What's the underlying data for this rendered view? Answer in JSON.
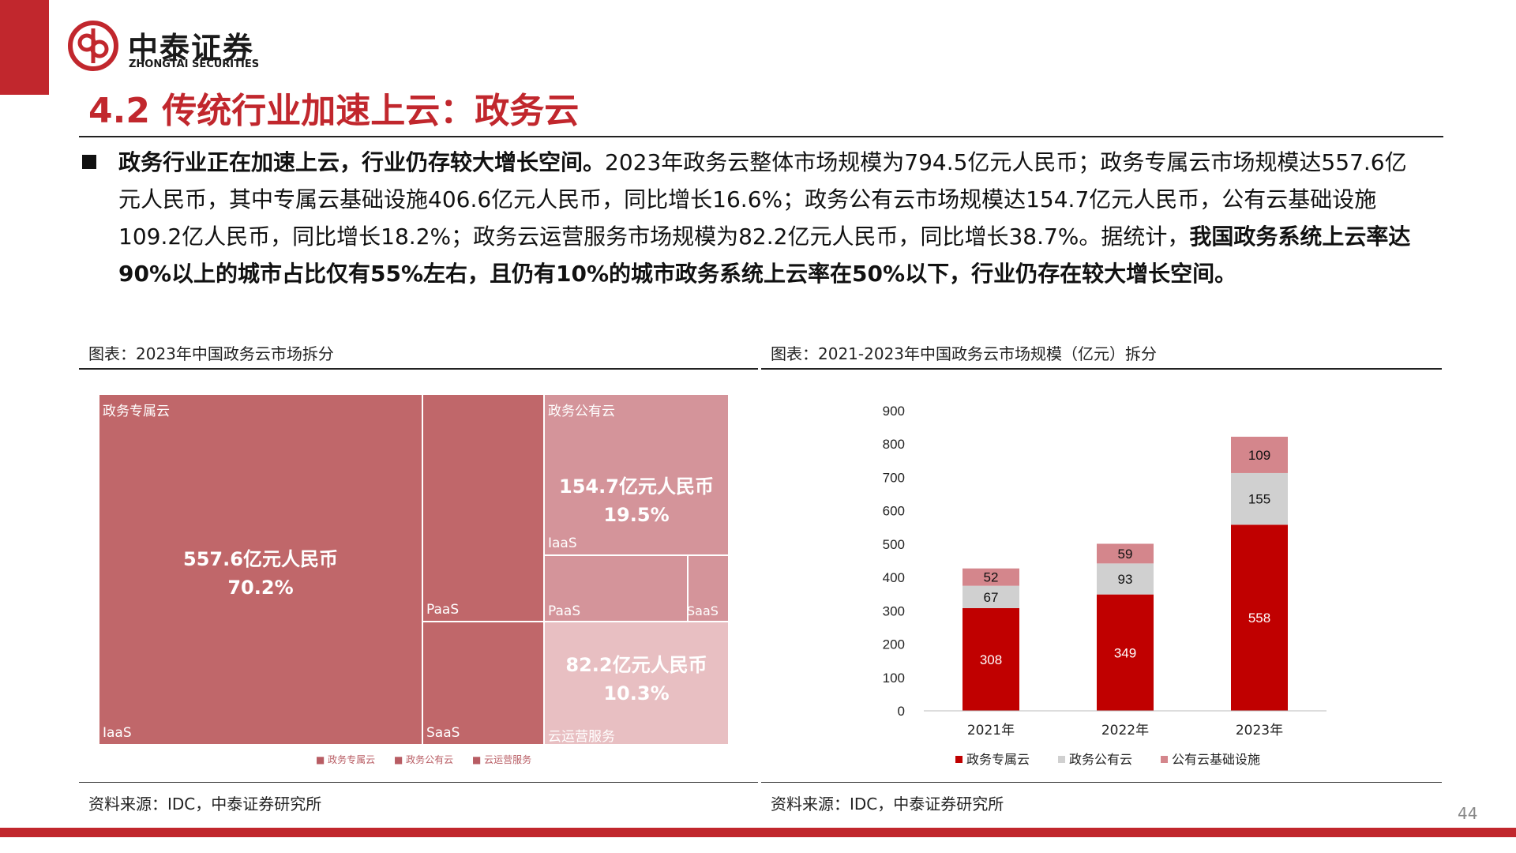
{
  "logo": {
    "name_cn": "中泰证券",
    "name_en": "ZHONGTAI SECURITIES"
  },
  "title": "4.2 传统行业加速上云：政务云",
  "summary": {
    "bold_lead": "政务行业正在加速上云，行业仍存较大增长空间。",
    "text1": "2023年政务云整体市场规模为794.5亿元人民币；政务专属云市场规模达557.6亿元人民币，其中专属云基础设施406.6亿元人民币，同比增长16.6%；政务公有云市场规模达154.7亿元人民币，公有云基础设施109.2亿人民币，同比增长18.2%；政务云运营服务市场规模为82.2亿元人民币，同比增长38.7%。据统计，",
    "bold_tail": "我国政务系统上云率达90%以上的城市占比仅有55%左右，且仍有10%的城市政务系统上云率在50%以下，行业仍存在较大增长空间。"
  },
  "left_figure": {
    "caption": "图表：2023年中国政务云市场拆分",
    "source": "资料来源：IDC，中泰证券研究所",
    "treemap": {
      "exclusive": {
        "label": "政务专属云",
        "value_text": "557.6亿元人民币",
        "share_text": "70.2%",
        "share": 0.702,
        "color": "#c0676a"
      },
      "public": {
        "label": "政务公有云",
        "value_text": "154.7亿元人民币",
        "share_text": "19.5%",
        "share": 0.195,
        "color": "#d4949a"
      },
      "ops": {
        "label": "云运营服务",
        "value_text": "82.2亿元人民币",
        "share_text": "10.3%",
        "share": 0.103,
        "color": "#e8bfc2"
      },
      "sub_labels": {
        "iaas": "IaaS",
        "paas": "PaaS",
        "saas": "SaaS"
      },
      "legend": [
        "政务专属云",
        "政务公有云",
        "云运营服务"
      ]
    }
  },
  "right_figure": {
    "caption": "图表：2021-2023年中国政务云市场规模（亿元）拆分",
    "source": "资料来源：IDC，中泰证券研究所"
  },
  "chart_data": {
    "type": "bar",
    "stacked": true,
    "categories": [
      "2021年",
      "2022年",
      "2023年"
    ],
    "series": [
      {
        "name": "政务专属云",
        "values": [
          308,
          349,
          558
        ],
        "color": "#c00000"
      },
      {
        "name": "政务公有云",
        "values": [
          67,
          93,
          155
        ],
        "color": "#d0d0d0"
      },
      {
        "name": "公有云基础设施",
        "values": [
          52,
          59,
          109
        ],
        "color": "#d4868c"
      }
    ],
    "ylim": [
      0,
      900
    ],
    "yticks": [
      0,
      100,
      200,
      300,
      400,
      500,
      600,
      700,
      800,
      900
    ],
    "grid": false,
    "legend": "bottom",
    "title": "",
    "xlabel": "",
    "ylabel": ""
  },
  "page_number": "44"
}
